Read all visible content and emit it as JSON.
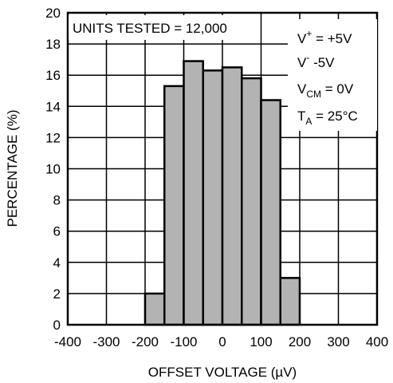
{
  "chart_data": {
    "type": "bar",
    "subtype": "histogram",
    "xlabel": "OFFSET VOLTAGE (µV)",
    "ylabel": "PERCENTAGE (%)",
    "xlim": [
      -400,
      400
    ],
    "ylim": [
      0,
      20
    ],
    "x_ticks": [
      -400,
      -300,
      -200,
      -100,
      0,
      100,
      200,
      300,
      400
    ],
    "x_tick_labels": [
      "-400",
      "-300",
      "-200",
      "-100",
      "0",
      "100",
      "200",
      "300",
      "400"
    ],
    "y_ticks": [
      0,
      2,
      4,
      6,
      8,
      10,
      12,
      14,
      16,
      18,
      20
    ],
    "y_tick_labels": [
      "0",
      "2",
      "4",
      "6",
      "8",
      "10",
      "12",
      "14",
      "16",
      "18",
      "20"
    ],
    "bin_width": 50,
    "bins": [
      {
        "x0": -200,
        "x1": -150,
        "value": 2.0
      },
      {
        "x0": -150,
        "x1": -100,
        "value": 15.3
      },
      {
        "x0": -100,
        "x1": -50,
        "value": 16.9
      },
      {
        "x0": -50,
        "x1": 0,
        "value": 16.3
      },
      {
        "x0": 0,
        "x1": 50,
        "value": 16.5
      },
      {
        "x0": 50,
        "x1": 100,
        "value": 15.8
      },
      {
        "x0": 100,
        "x1": 150,
        "value": 14.4
      },
      {
        "x0": 150,
        "x1": 200,
        "value": 3.0
      }
    ],
    "grid": true,
    "bar_color": "#b3b3b3",
    "annotations": {
      "units_tested": "UNITS TESTED = 12,000",
      "vplus": {
        "main": "V",
        "sup": "+",
        "rest": " = +5V"
      },
      "vminus": {
        "main": "V",
        "sup": "-",
        "rest": " -5V"
      },
      "vcm": {
        "main": "V",
        "sub": "CM",
        "rest": " = 0V"
      },
      "ta": {
        "main": "T",
        "sub": "A",
        "rest": " = 25°C"
      }
    }
  }
}
